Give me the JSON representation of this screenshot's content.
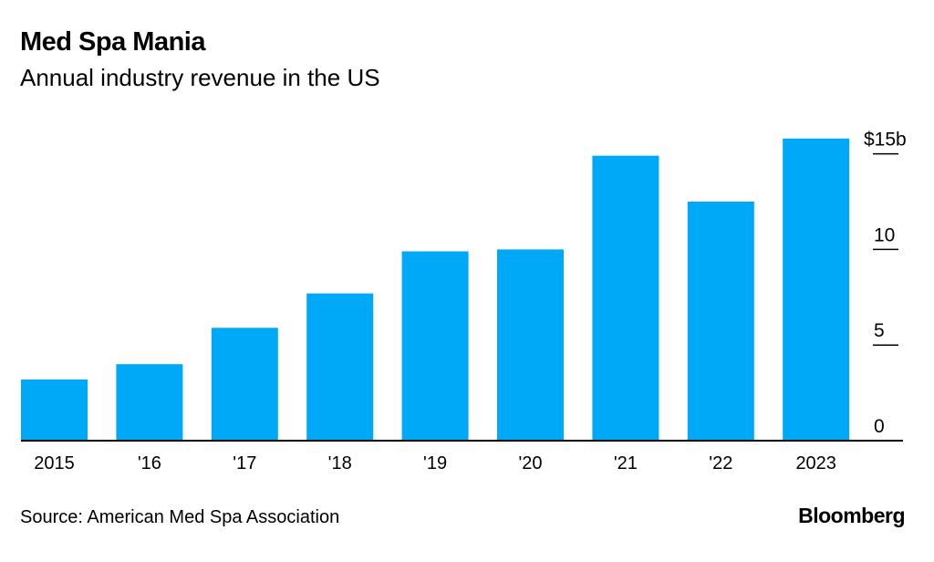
{
  "title": "Med Spa Mania",
  "subtitle": "Annual industry revenue in the US",
  "source": "Source: American Med Spa Association",
  "brand": "Bloomberg",
  "chart_data": {
    "type": "bar",
    "title": "Med Spa Mania",
    "subtitle": "Annual industry revenue in the US",
    "categories": [
      "2015",
      "'16",
      "'17",
      "'18",
      "'19",
      "'20",
      "'21",
      "'22",
      "2023"
    ],
    "values": [
      3.2,
      4.0,
      5.9,
      7.7,
      9.9,
      10.0,
      14.9,
      12.5,
      15.8
    ],
    "unit": "$ billions",
    "ylim": [
      0,
      15.8
    ],
    "yticks": [
      0,
      5,
      10,
      15
    ],
    "ytick_labels": [
      "0",
      "5",
      "10",
      "$15b"
    ],
    "yaxis_position": "right",
    "grid": false,
    "bar_color": "#00a8f8",
    "axis_color": "#000000"
  }
}
